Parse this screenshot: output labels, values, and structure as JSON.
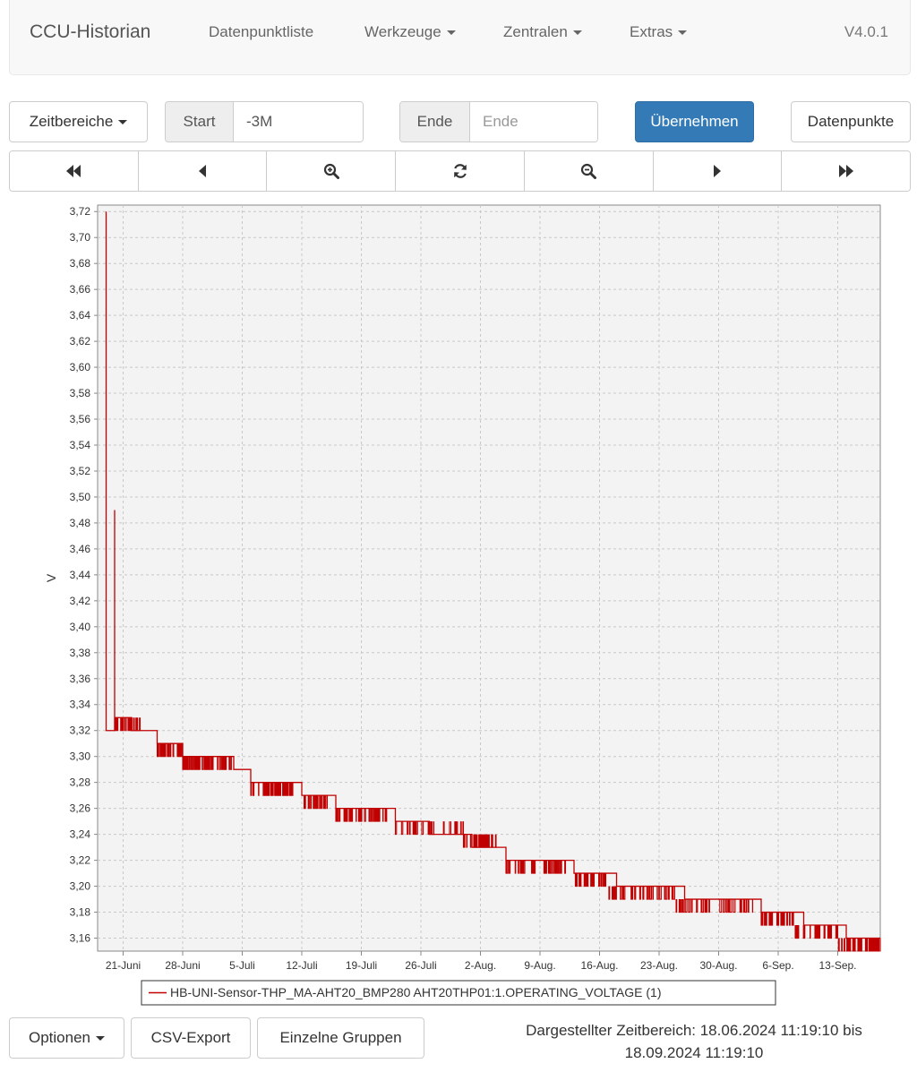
{
  "navbar": {
    "brand": "CCU-Historian",
    "items": [
      {
        "label": "Datenpunktliste",
        "dropdown": false
      },
      {
        "label": "Werkzeuge",
        "dropdown": true
      },
      {
        "label": "Zentralen",
        "dropdown": true
      },
      {
        "label": "Extras",
        "dropdown": true
      }
    ],
    "version": "V4.0.1"
  },
  "controls": {
    "timeranges_label": "Zeitbereiche",
    "start_label": "Start",
    "start_value": "-3M",
    "end_label": "Ende",
    "end_placeholder": "Ende",
    "apply_label": "Übernehmen",
    "datapoints_label": "Datenpunkte"
  },
  "nav_buttons": [
    "fast-backward-icon",
    "backward-icon",
    "zoom-in-icon",
    "refresh-icon",
    "zoom-out-icon",
    "forward-icon",
    "fast-forward-icon"
  ],
  "chart_data": {
    "type": "line",
    "ylabel": "V",
    "ylim": [
      3.15,
      3.725
    ],
    "yticks": [
      "3,16",
      "3,18",
      "3,20",
      "3,22",
      "3,24",
      "3,26",
      "3,28",
      "3,30",
      "3,32",
      "3,34",
      "3,36",
      "3,38",
      "3,40",
      "3,42",
      "3,44",
      "3,46",
      "3,48",
      "3,50",
      "3,52",
      "3,54",
      "3,56",
      "3,58",
      "3,60",
      "3,62",
      "3,64",
      "3,66",
      "3,68",
      "3,70",
      "3,72"
    ],
    "xlim": [
      "2024-06-18",
      "2024-09-18"
    ],
    "xticks": [
      {
        "date": "2024-06-21",
        "label": "21-Juni"
      },
      {
        "date": "2024-06-28",
        "label": "28-Juni"
      },
      {
        "date": "2024-07-05",
        "label": "5-Juli"
      },
      {
        "date": "2024-07-12",
        "label": "12-Juli"
      },
      {
        "date": "2024-07-19",
        "label": "19-Juli"
      },
      {
        "date": "2024-07-26",
        "label": "26-Juli"
      },
      {
        "date": "2024-08-02",
        "label": "2-Aug."
      },
      {
        "date": "2024-08-09",
        "label": "9-Aug."
      },
      {
        "date": "2024-08-16",
        "label": "16-Aug."
      },
      {
        "date": "2024-08-23",
        "label": "23-Aug."
      },
      {
        "date": "2024-08-30",
        "label": "30-Aug."
      },
      {
        "date": "2024-09-06",
        "label": "6-Sep."
      },
      {
        "date": "2024-09-13",
        "label": "13-Sep."
      }
    ],
    "grid": true,
    "legend_placement": "bottom",
    "series": [
      {
        "name": "HB-UNI-Sensor-THP_MA-AHT20_BMP280 AHT20THP01:1.OPERATING_VOLTAGE (1)",
        "color": "#c00000",
        "points": [
          [
            "2024-06-19",
            3.34
          ],
          [
            "2024-06-19",
            3.33
          ],
          [
            "2024-06-19",
            3.72
          ],
          [
            "2024-06-19",
            3.32
          ],
          [
            "2024-06-20",
            3.34
          ],
          [
            "2024-06-20",
            3.49
          ],
          [
            "2024-06-20",
            3.33
          ],
          [
            "2024-06-21",
            3.33
          ],
          [
            "2024-06-22",
            3.32
          ],
          [
            "2024-06-24",
            3.32
          ],
          [
            "2024-06-25",
            3.31
          ],
          [
            "2024-06-27",
            3.31
          ],
          [
            "2024-06-28",
            3.3
          ],
          [
            "2024-07-02",
            3.3
          ],
          [
            "2024-07-04",
            3.29
          ],
          [
            "2024-07-05",
            3.29
          ],
          [
            "2024-07-06",
            3.28
          ],
          [
            "2024-07-10",
            3.28
          ],
          [
            "2024-07-12",
            3.27
          ],
          [
            "2024-07-15",
            3.27
          ],
          [
            "2024-07-16",
            3.26
          ],
          [
            "2024-07-22",
            3.26
          ],
          [
            "2024-07-23",
            3.25
          ],
          [
            "2024-07-26",
            3.25
          ],
          [
            "2024-07-27",
            3.24
          ],
          [
            "2024-07-31",
            3.24
          ],
          [
            "2024-08-01",
            3.23
          ],
          [
            "2024-08-04",
            3.23
          ],
          [
            "2024-08-05",
            3.22
          ],
          [
            "2024-08-12",
            3.22
          ],
          [
            "2024-08-13",
            3.21
          ],
          [
            "2024-08-17",
            3.21
          ],
          [
            "2024-08-18",
            3.2
          ],
          [
            "2024-08-25",
            3.2
          ],
          [
            "2024-08-26",
            3.19
          ],
          [
            "2024-09-03",
            3.19
          ],
          [
            "2024-09-04",
            3.18
          ],
          [
            "2024-09-08",
            3.18
          ],
          [
            "2024-09-09",
            3.17
          ],
          [
            "2024-09-13",
            3.17
          ],
          [
            "2024-09-14",
            3.16
          ],
          [
            "2024-09-18",
            3.16
          ]
        ],
        "noise_levels": [
          {
            "from": "2024-06-20",
            "to": "2024-06-23",
            "values": [
              3.32,
              3.33
            ]
          },
          {
            "from": "2024-06-25",
            "to": "2024-06-28",
            "values": [
              3.3,
              3.31
            ]
          },
          {
            "from": "2024-06-28",
            "to": "2024-07-04",
            "values": [
              3.29,
              3.3
            ]
          },
          {
            "from": "2024-07-06",
            "to": "2024-07-11",
            "values": [
              3.27,
              3.28
            ]
          },
          {
            "from": "2024-07-12",
            "to": "2024-07-15",
            "values": [
              3.26,
              3.27
            ]
          },
          {
            "from": "2024-07-16",
            "to": "2024-07-22",
            "values": [
              3.25,
              3.26
            ]
          },
          {
            "from": "2024-07-23",
            "to": "2024-07-31",
            "values": [
              3.24,
              3.25
            ]
          },
          {
            "from": "2024-07-31",
            "to": "2024-08-04",
            "values": [
              3.23,
              3.24
            ]
          },
          {
            "from": "2024-08-05",
            "to": "2024-08-12",
            "values": [
              3.21,
              3.22
            ]
          },
          {
            "from": "2024-08-13",
            "to": "2024-08-17",
            "values": [
              3.2,
              3.21
            ]
          },
          {
            "from": "2024-08-17",
            "to": "2024-08-25",
            "values": [
              3.19,
              3.2
            ]
          },
          {
            "from": "2024-08-25",
            "to": "2024-09-03",
            "values": [
              3.18,
              3.19
            ]
          },
          {
            "from": "2024-09-04",
            "to": "2024-09-08",
            "values": [
              3.17,
              3.18
            ]
          },
          {
            "from": "2024-09-08",
            "to": "2024-09-13",
            "values": [
              3.16,
              3.17
            ]
          },
          {
            "from": "2024-09-13",
            "to": "2024-09-18",
            "values": [
              3.15,
              3.16
            ]
          }
        ]
      }
    ]
  },
  "footer": {
    "options_label": "Optionen",
    "csv_label": "CSV-Export",
    "groups_label": "Einzelne Gruppen",
    "status_line1": "Dargestellter Zeitbereich: 18.06.2024 11:19:10 bis",
    "status_line2": "18.09.2024 11:19:10"
  }
}
